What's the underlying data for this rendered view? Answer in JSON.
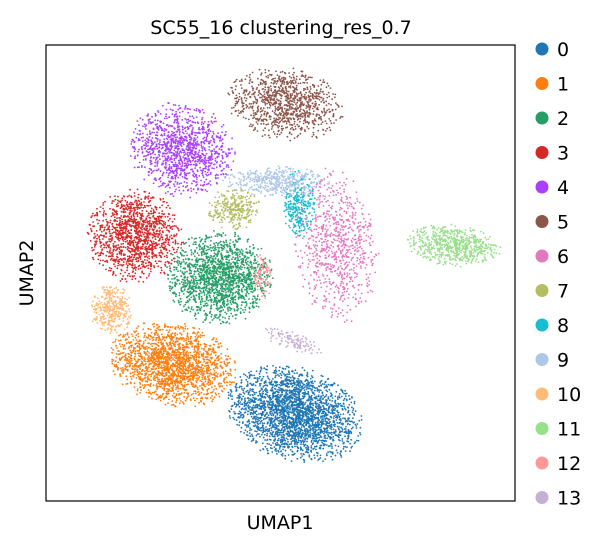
{
  "chart_data": {
    "type": "scatter",
    "title": "SC55_16 clustering_res_0.7",
    "xlabel": "UMAP1",
    "ylabel": "UMAP2",
    "grid": false,
    "xticks": false,
    "yticks": false,
    "xlim": [
      0,
      100
    ],
    "ylim": [
      0,
      100
    ],
    "legend_position": "right",
    "series": [
      {
        "name": "0",
        "color": "#1f77b4",
        "cx": 53,
        "cy": 19,
        "rx": 13,
        "ry": 9,
        "rot": -18,
        "n": 2600
      },
      {
        "name": "1",
        "color": "#ff7f0e",
        "cx": 27,
        "cy": 30,
        "rx": 12,
        "ry": 8,
        "rot": -12,
        "n": 1900
      },
      {
        "name": "2",
        "color": "#279e68",
        "cx": 37,
        "cy": 49,
        "rx": 10,
        "ry": 9,
        "rot": 0,
        "n": 1700
      },
      {
        "name": "3",
        "color": "#d62728",
        "cx": 19,
        "cy": 58,
        "rx": 9,
        "ry": 9,
        "rot": 0,
        "n": 1300
      },
      {
        "name": "4",
        "color": "#aa40fc",
        "cx": 29,
        "cy": 77,
        "rx": 10,
        "ry": 9,
        "rot": -22,
        "n": 1200
      },
      {
        "name": "5",
        "color": "#8c564b",
        "cx": 51,
        "cy": 87,
        "rx": 11,
        "ry": 7,
        "rot": -8,
        "n": 1000
      },
      {
        "name": "6",
        "color": "#e377c2",
        "cx": 62,
        "cy": 56,
        "rx": 8,
        "ry": 15,
        "rot": 5,
        "n": 800
      },
      {
        "name": "7",
        "color": "#b5bd61",
        "cx": 40,
        "cy": 64,
        "rx": 5,
        "ry": 4,
        "rot": 0,
        "n": 300
      },
      {
        "name": "8",
        "color": "#17becf",
        "cx": 54,
        "cy": 65,
        "rx": 3,
        "ry": 7,
        "rot": 0,
        "n": 300
      },
      {
        "name": "9",
        "color": "#aec7e8",
        "cx": 49,
        "cy": 70,
        "rx": 10,
        "ry": 3,
        "rot": 0,
        "n": 450
      },
      {
        "name": "10",
        "color": "#ffbb78",
        "cx": 14,
        "cy": 42,
        "rx": 4,
        "ry": 5,
        "rot": 0,
        "n": 350
      },
      {
        "name": "11",
        "color": "#98df8a",
        "cx": 87,
        "cy": 56,
        "rx": 9,
        "ry": 4,
        "rot": -6,
        "n": 650
      },
      {
        "name": "12",
        "color": "#ff9896",
        "cx": 46,
        "cy": 49,
        "rx": 2,
        "ry": 5,
        "rot": 0,
        "n": 90
      },
      {
        "name": "13",
        "color": "#c5b0d5",
        "cx": 53,
        "cy": 35,
        "rx": 6,
        "ry": 2,
        "rot": -20,
        "n": 120
      }
    ]
  }
}
